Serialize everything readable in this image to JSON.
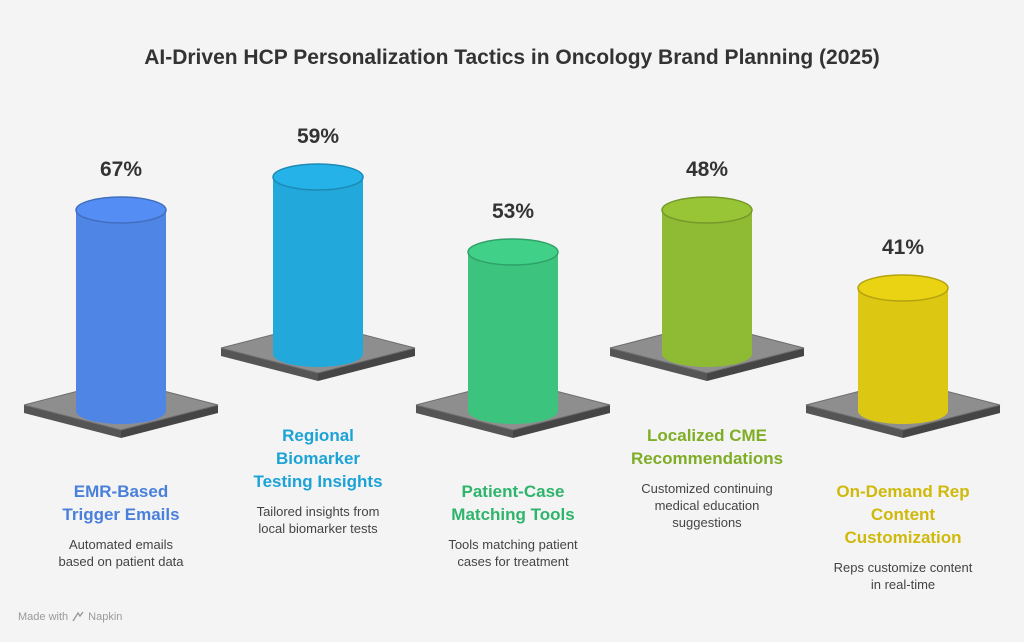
{
  "title": "AI-Driven HCP Personalization Tactics in Oncology Brand Planning (2025)",
  "chart_data": {
    "type": "bar",
    "title": "AI-Driven HCP Personalization Tactics in Oncology Brand Planning (2025)",
    "categories": [
      "EMR-Based Trigger Emails",
      "Regional Biomarker Testing Insights",
      "Patient-Case Matching Tools",
      "Localized CME Recommendations",
      "On-Demand Rep Content Customization"
    ],
    "values": [
      67,
      59,
      53,
      48,
      41
    ],
    "value_labels": [
      "67%",
      "59%",
      "53%",
      "48%",
      "41%"
    ],
    "unit": "%",
    "colors": [
      "#4f86e6",
      "#22a8db",
      "#3cc47f",
      "#8fba33",
      "#dcc712"
    ],
    "label_colors": [
      "#4a80dc",
      "#1ca3d6",
      "#2fb46c",
      "#7fad26",
      "#cfb90b"
    ],
    "descriptions": [
      "Automated emails based on patient data",
      "Tailored insights from local biomarker tests",
      "Tools matching patient cases for treatment",
      "Customized continuing medical education suggestions",
      "Reps customize content in real-time"
    ]
  },
  "labels": [
    [
      "EMR-Based",
      "Trigger Emails"
    ],
    [
      "Regional",
      "Biomarker",
      "Testing Insights"
    ],
    [
      "Patient-Case",
      "Matching Tools"
    ],
    [
      "Localized CME",
      "Recommendations"
    ],
    [
      "On-Demand Rep",
      "Content",
      "Customization"
    ]
  ],
  "desc_lines": [
    [
      "Automated emails",
      "based on patient data"
    ],
    [
      "Tailored insights from",
      "local biomarker tests"
    ],
    [
      "Tools matching patient",
      "cases for treatment"
    ],
    [
      "Customized continuing",
      "medical education",
      "suggestions"
    ],
    [
      "Reps customize content",
      "in real-time"
    ]
  ],
  "footer": {
    "text": "Made with",
    "brand": "Napkin"
  }
}
